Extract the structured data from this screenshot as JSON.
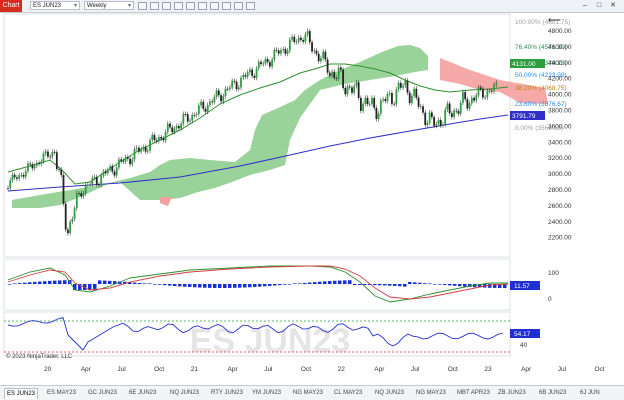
{
  "toolbar": {
    "badge": "Chart",
    "instrument": "ES JUN23",
    "interval": "Weekly"
  },
  "watermark": "ES JUN23",
  "copyright": "© 2023 NinjaTrader, LLC",
  "price_axis": {
    "ticks": [
      "4800.00",
      "4600.00",
      "4400.00",
      "4200.00",
      "4000.00",
      "3800.00",
      "3600.00",
      "3400.00",
      "3200.00",
      "3000.00",
      "2800.00",
      "2600.00",
      "2400.00",
      "2200.00"
    ],
    "last_price": "4131.00",
    "line_value": "3791.79"
  },
  "fib_levels": [
    {
      "label": "100.00% (4881.75)",
      "color": "#a0a0a0"
    },
    {
      "label": "76.40% (4571.30)",
      "color": "#2e8b57"
    },
    {
      "label": "61.80% (4379.23)",
      "color": "#2e8b57"
    },
    {
      "label": "50.00% (4223.99)",
      "color": "#1e90ff"
    },
    {
      "label": "38.20% (4068.75)",
      "color": "#b8860b"
    },
    {
      "label": "23.60% (3876.67)",
      "color": "#1e90ff"
    },
    {
      "label": "0.00% (3566.19)",
      "color": "#a0a0a0"
    }
  ],
  "macd_axis": {
    "ticks": [
      "100",
      "0"
    ],
    "value": "11.57"
  },
  "rsi_axis": {
    "ticks": [
      "40"
    ],
    "value": "54.17"
  },
  "time_axis": [
    "20",
    "Apr",
    "Jul",
    "Oct",
    "21",
    "Apr",
    "Jul",
    "Oct",
    "22",
    "Apr",
    "Jul",
    "Oct",
    "23",
    "Apr",
    "Jul",
    "Oct"
  ],
  "tabs": [
    "ES JUN23",
    "ES MAY23",
    "GC JUN23",
    "6E JUN23",
    "NQ JUN23",
    "RTY JUN23",
    "YM JUN23",
    "NG MAY23",
    "CL MAY23",
    "NQ JUN23",
    "NG MAY23",
    "MBT APR23",
    "ZB JUN23",
    "6B JUN23",
    "6J JUN"
  ],
  "colors": {
    "up": "#2e9e3e",
    "down": "#222222",
    "sma": "#2f8f2f",
    "long_ma": "#3030c8",
    "cloud_green": "#8fce8f",
    "cloud_red": "#f5a0a0",
    "rsi": "#2233cc",
    "accent": "#d72b1e"
  }
}
